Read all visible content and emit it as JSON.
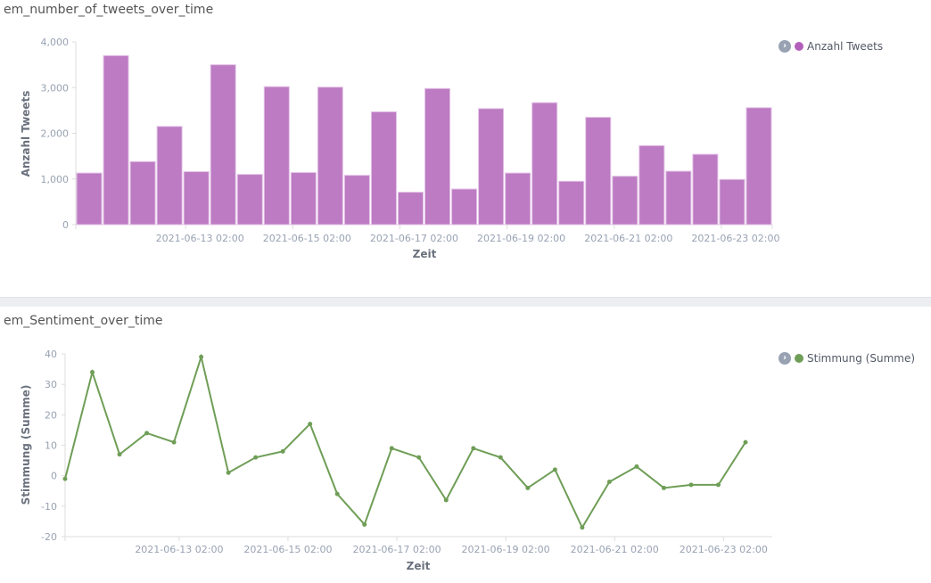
{
  "chart_data": [
    {
      "type": "bar",
      "title": "em_number_of_tweets_over_time",
      "xlabel": "Zeit",
      "ylabel": "Anzahl Tweets",
      "ylim": [
        0,
        4000
      ],
      "yticks": [
        "0",
        "1,000",
        "2,000",
        "3,000",
        "4,000"
      ],
      "xticks": [
        "2021-06-13 02:00",
        "2021-06-15 02:00",
        "2021-06-17 02:00",
        "2021-06-19 02:00",
        "2021-06-21 02:00",
        "2021-06-23 02:00"
      ],
      "legend": "top-right",
      "series": [
        {
          "name": "Anzahl Tweets",
          "color": "#bc7bc2",
          "values": [
            1130,
            3700,
            1380,
            2150,
            1160,
            3500,
            1100,
            3020,
            1140,
            3010,
            1080,
            2470,
            710,
            2980,
            780,
            2540,
            1130,
            2670,
            950,
            2350,
            1060,
            1730,
            1170,
            1540,
            990,
            2560
          ]
        }
      ]
    },
    {
      "type": "line",
      "title": "em_Sentiment_over_time",
      "xlabel": "Zeit",
      "ylabel": "Stimmung (Summe)",
      "ylim": [
        -20,
        40
      ],
      "yticks": [
        "-20",
        "-10",
        "0",
        "10",
        "20",
        "30",
        "40"
      ],
      "xticks": [
        "2021-06-13 02:00",
        "2021-06-15 02:00",
        "2021-06-17 02:00",
        "2021-06-19 02:00",
        "2021-06-21 02:00",
        "2021-06-23 02:00"
      ],
      "legend": "top-right",
      "series": [
        {
          "name": "Stimmung (Summe)",
          "color": "#6f9e57",
          "values": [
            -1,
            34,
            7,
            14,
            11,
            39,
            1,
            6,
            8,
            17,
            -6,
            -16,
            9,
            6,
            -8,
            9,
            6,
            -4,
            2,
            -17,
            -2,
            3,
            -4,
            -3,
            -3,
            11
          ]
        }
      ]
    }
  ]
}
